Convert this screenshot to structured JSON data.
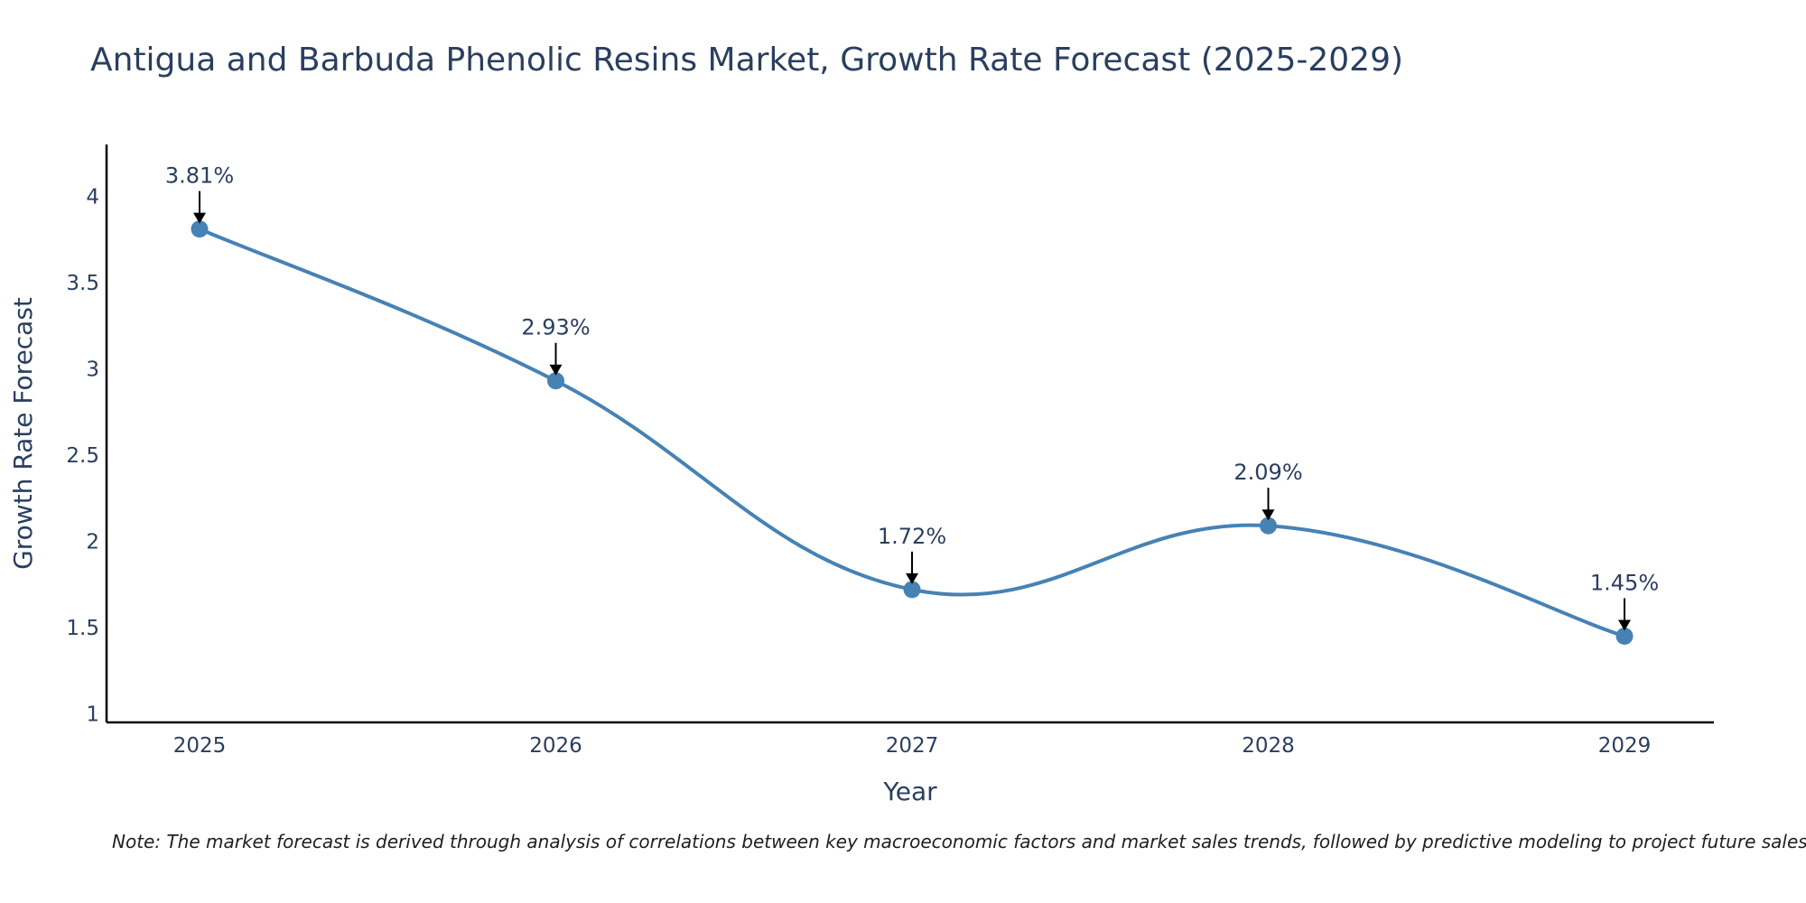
{
  "chart_data": {
    "type": "line",
    "title": "Antigua and Barbuda Phenolic Resins Market, Growth Rate Forecast (2025-2029)",
    "xlabel": "Year",
    "ylabel": "Growth Rate Forecast",
    "categories": [
      "2025",
      "2026",
      "2027",
      "2028",
      "2029"
    ],
    "values": [
      3.81,
      2.93,
      1.72,
      2.09,
      1.45
    ],
    "data_labels": [
      "3.81%",
      "2.93%",
      "1.72%",
      "2.09%",
      "1.45%"
    ],
    "ylim": [
      0.95,
      4.3
    ],
    "yticks": [
      1,
      1.5,
      2,
      2.5,
      3,
      3.5,
      4
    ],
    "ytick_labels": [
      "1",
      "1.5",
      "2",
      "2.5",
      "3",
      "3.5",
      "4"
    ],
    "grid": false,
    "line_color": "#4682b4",
    "note": "Note: The market forecast is derived through analysis of correlations between key macroeconomic factors and market sales trends, followed by predictive modeling to project future sales."
  }
}
